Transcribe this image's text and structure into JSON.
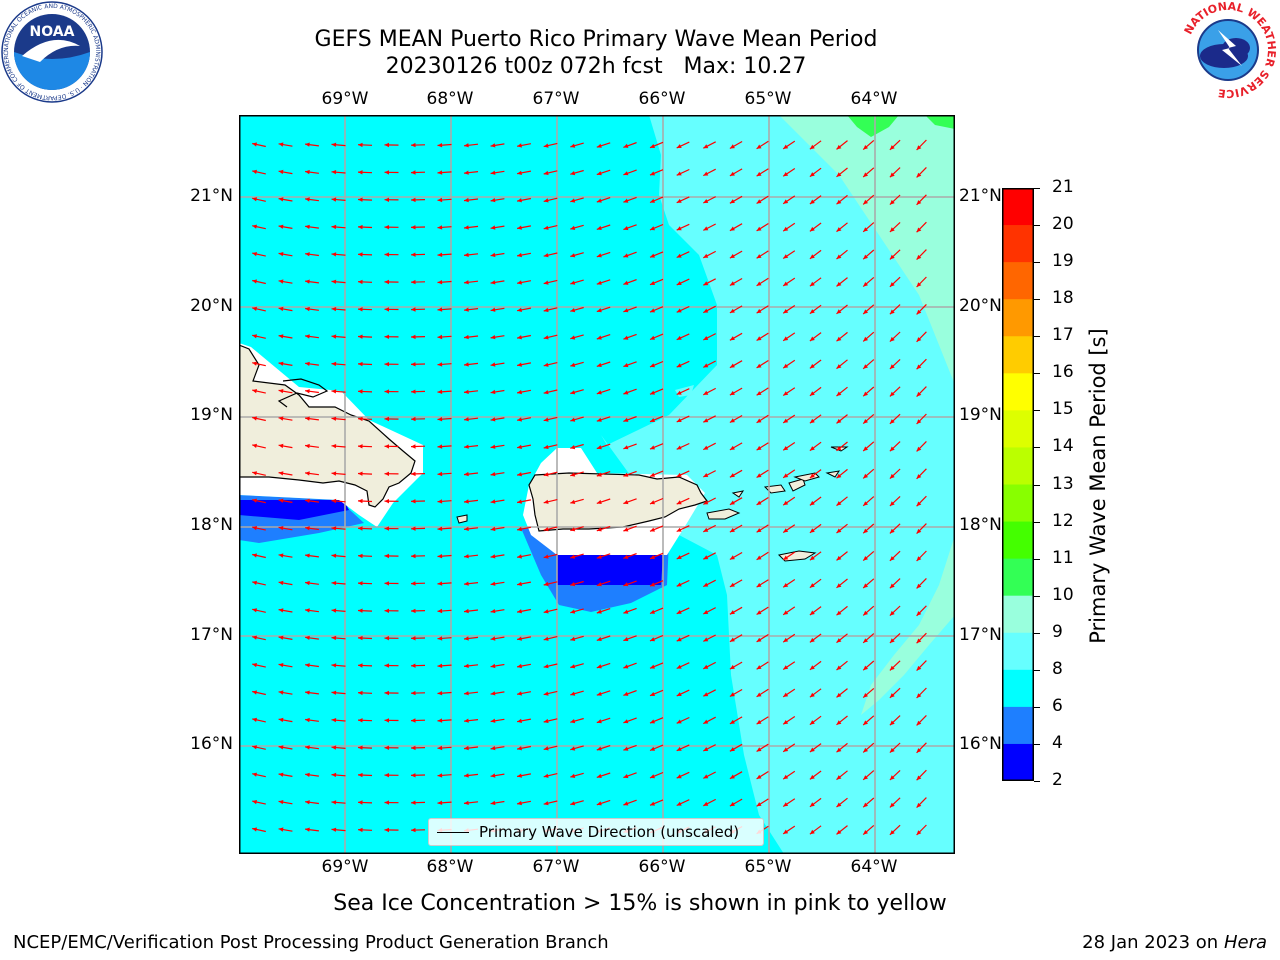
{
  "title": {
    "line1": "GEFS MEAN Puerto Rico Primary Wave Mean Period",
    "line2": "20230126 t00z 072h fcst   Max: 10.27"
  },
  "axes": {
    "lon_ticks": [
      "69°W",
      "68°W",
      "67°W",
      "66°W",
      "65°W",
      "64°W"
    ],
    "lat_ticks": [
      "21°N",
      "20°N",
      "19°N",
      "18°N",
      "17°N",
      "16°N"
    ]
  },
  "legend": {
    "label": "Primary Wave Direction (unscaled)"
  },
  "colorbar": {
    "label": "Primary Wave Mean Period [s]",
    "ticks": [
      "21",
      "20",
      "19",
      "18",
      "17",
      "16",
      "15",
      "14",
      "13",
      "12",
      "11",
      "10",
      "9",
      "8",
      "6",
      "4",
      "2"
    ],
    "colors": [
      "#ff0000",
      "#ff3300",
      "#ff6600",
      "#ff9900",
      "#ffcc00",
      "#ffff00",
      "#ddff00",
      "#bbff00",
      "#88ff00",
      "#44ff00",
      "#33ff55",
      "#99ffdd",
      "#66ffff",
      "#00ffff",
      "#1e7fff",
      "#0000ff"
    ]
  },
  "footnote": "Sea Ice Concentration > 15% is shown in pink to yellow",
  "credits": {
    "left": "NCEP/EMC/Verification Post Processing Product Generation Branch",
    "right_prefix": "28 Jan 2023 on ",
    "right_host": "Hera"
  },
  "logos": {
    "noaa": {
      "name": "NOAA",
      "ring_text": "NATIONAL OCEANIC AND ATMOSPHERIC ADMINISTRATION · U.S. DEPARTMENT OF COMMERCE"
    },
    "nws": {
      "ring_text": "NATIONAL WEATHER SERVICE"
    }
  },
  "colors": {
    "ocean_main": "#00ffff",
    "ocean_light": "#66ffff",
    "ocean_lighter": "#99ffdd",
    "ocean_green": "#33ff55",
    "ocean_shallow": "#1e7fff",
    "ocean_deep": "#0000ff",
    "land": "#f0eedc",
    "arrow": "#ff0000",
    "grid": "#aaaaaa"
  }
}
